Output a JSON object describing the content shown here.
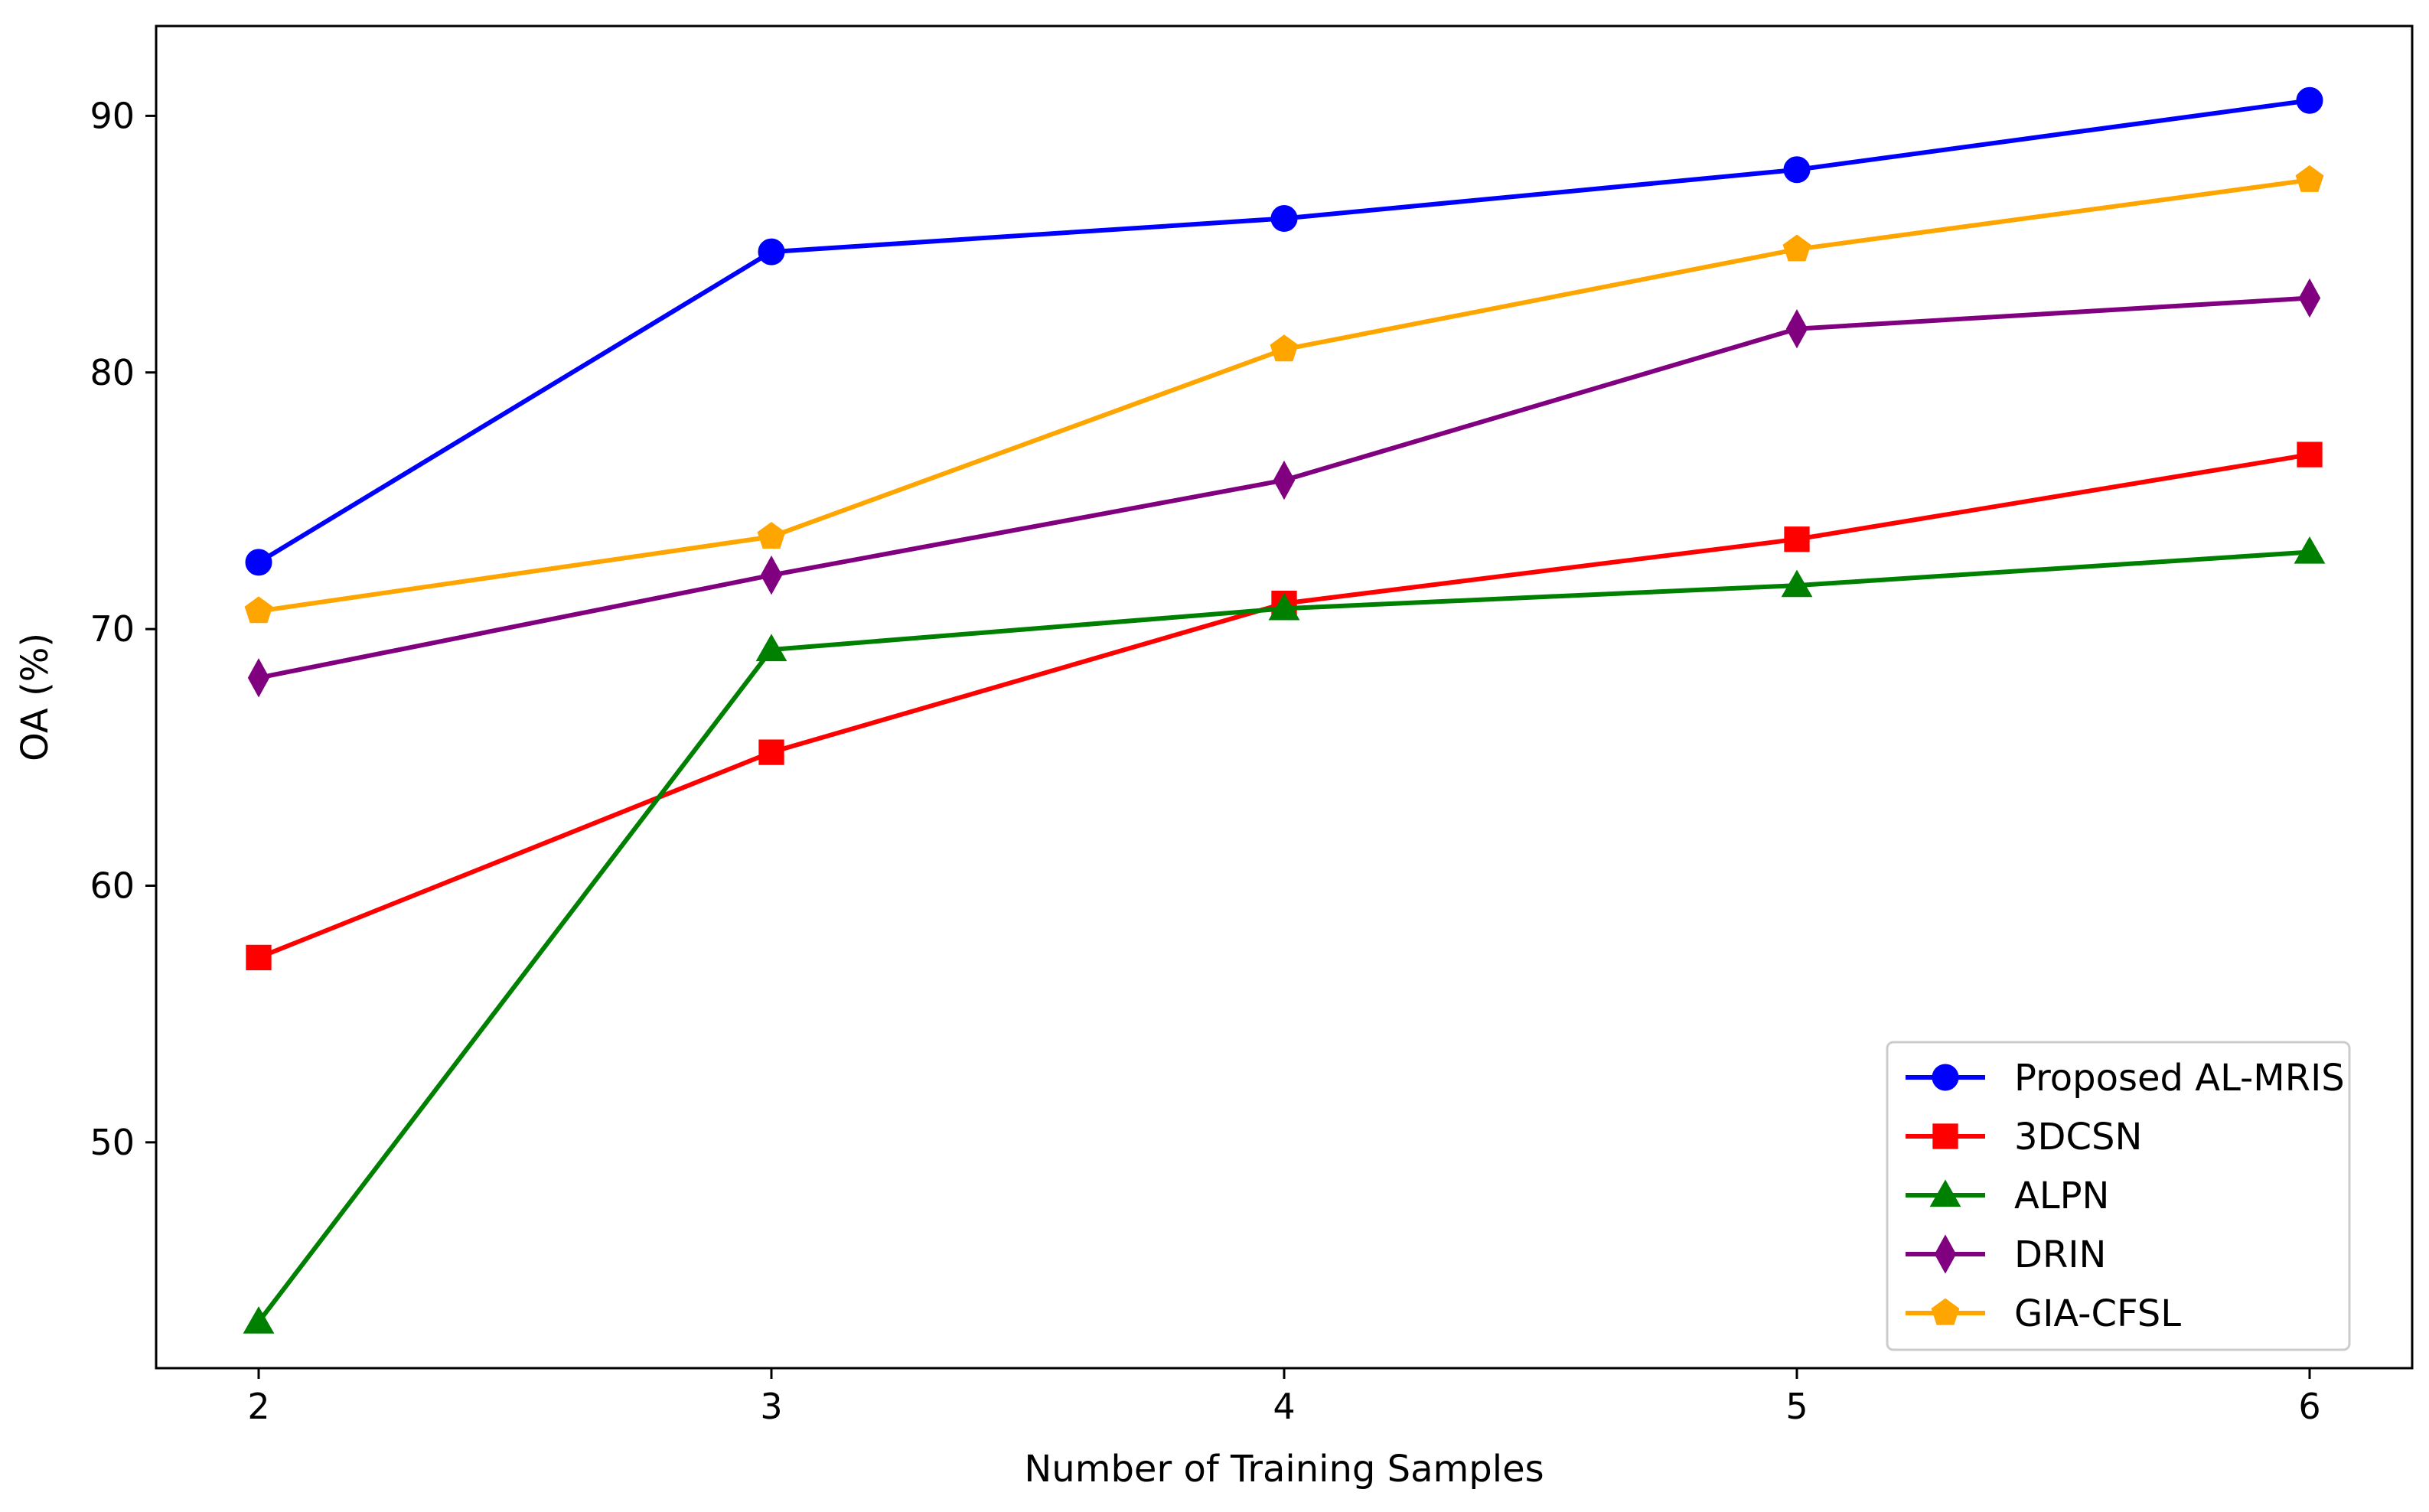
{
  "chart_data": {
    "type": "line",
    "title": "",
    "xlabel": "Number of Training Samples",
    "ylabel": "OA (%)",
    "x": [
      2,
      3,
      4,
      5,
      6
    ],
    "xticks": [
      2,
      3,
      4,
      5,
      6
    ],
    "yticks": [
      50,
      60,
      70,
      80,
      90
    ],
    "xlim": [
      1.8,
      6.2
    ],
    "ylim": [
      41.2,
      93.5
    ],
    "grid": false,
    "legend_position": "lower-right",
    "series": [
      {
        "name": "Proposed AL-MRIS",
        "color": "#0000ff",
        "marker": "circle",
        "values": [
          72.6,
          84.7,
          86.0,
          87.9,
          90.6
        ]
      },
      {
        "name": "3DCSN",
        "color": "#ff0000",
        "marker": "square",
        "values": [
          57.2,
          65.2,
          71.0,
          73.5,
          76.8
        ]
      },
      {
        "name": "ALPN",
        "color": "#008000",
        "marker": "triangle",
        "values": [
          43.0,
          69.2,
          70.8,
          71.7,
          73.0
        ]
      },
      {
        "name": "DRIN",
        "color": "#800080",
        "marker": "diamond",
        "values": [
          68.1,
          72.1,
          75.8,
          81.7,
          82.9
        ]
      },
      {
        "name": "GIA-CFSL",
        "color": "#ffa500",
        "marker": "pentagon",
        "values": [
          70.7,
          73.6,
          80.9,
          84.8,
          87.5
        ]
      }
    ]
  }
}
